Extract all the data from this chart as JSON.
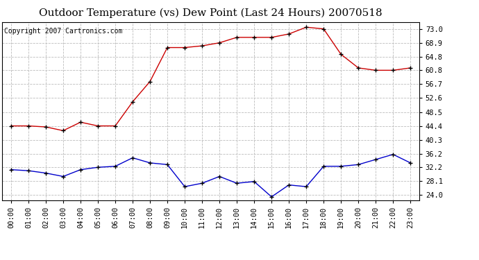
{
  "title": "Outdoor Temperature (vs) Dew Point (Last 24 Hours) 20070518",
  "copyright": "Copyright 2007 Cartronics.com",
  "x_labels": [
    "00:00",
    "01:00",
    "02:00",
    "03:00",
    "04:00",
    "05:00",
    "06:00",
    "07:00",
    "08:00",
    "09:00",
    "10:00",
    "11:00",
    "12:00",
    "13:00",
    "14:00",
    "15:00",
    "16:00",
    "17:00",
    "18:00",
    "19:00",
    "20:00",
    "21:00",
    "22:00",
    "23:00"
  ],
  "temp_data": [
    44.4,
    44.4,
    44.1,
    43.0,
    45.5,
    44.4,
    44.4,
    51.5,
    57.5,
    67.5,
    67.5,
    68.0,
    68.9,
    70.5,
    70.5,
    70.5,
    71.5,
    73.5,
    73.0,
    65.5,
    61.5,
    60.8,
    60.8,
    61.5
  ],
  "dew_data": [
    31.5,
    31.2,
    30.5,
    29.5,
    31.5,
    32.2,
    32.5,
    35.0,
    33.5,
    33.0,
    26.5,
    27.5,
    29.5,
    27.5,
    28.0,
    23.5,
    27.0,
    26.5,
    32.5,
    32.5,
    33.0,
    34.5,
    36.0,
    33.5
  ],
  "temp_color": "#cc0000",
  "dew_color": "#0000cc",
  "background_color": "#ffffff",
  "plot_bg_color": "#ffffff",
  "grid_color": "#bbbbbb",
  "y_ticks": [
    24.0,
    28.1,
    32.2,
    36.2,
    40.3,
    44.4,
    48.5,
    52.6,
    56.7,
    60.8,
    64.8,
    68.9,
    73.0
  ],
  "ylim": [
    22.5,
    75.0
  ],
  "title_fontsize": 11,
  "axis_fontsize": 7.5,
  "copyright_fontsize": 7
}
